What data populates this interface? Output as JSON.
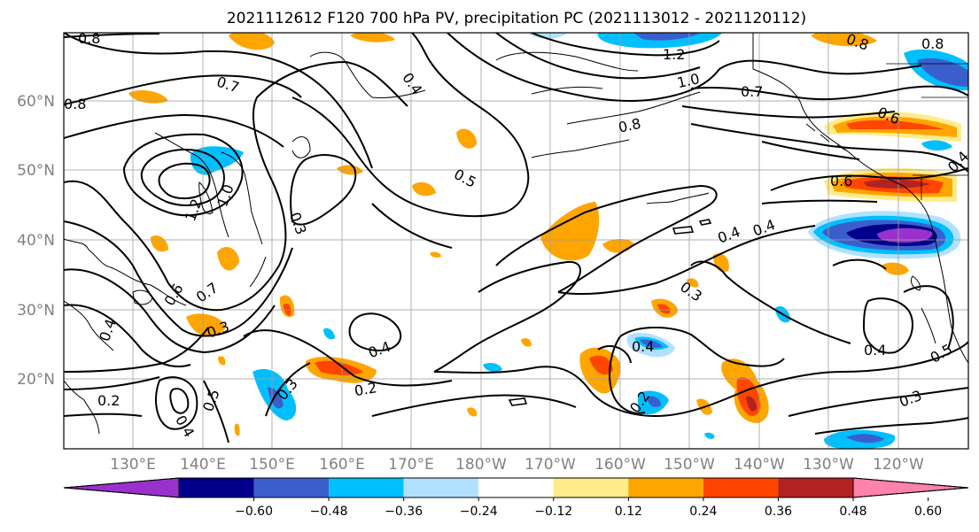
{
  "title": "2021112612 F120 700 hPa PV, precipitation PC (2021113012 - 2021120112)",
  "map": {
    "lat_labels": [
      "60°N",
      "50°N",
      "40°N",
      "30°N",
      "20°N"
    ],
    "lon_labels": [
      "130°E",
      "140°E",
      "150°E",
      "160°E",
      "170°E",
      "180°W",
      "170°W",
      "160°W",
      "150°W",
      "140°W",
      "130°W",
      "120°W"
    ],
    "contour_labels": [
      "0.8",
      "0.8",
      "0.7",
      "0.4",
      "1.2",
      "1.0",
      "0.7",
      "0.8",
      "0.8",
      "0.8",
      "0.6",
      "0.6",
      "0.4",
      "0.5",
      "0.3",
      "1.2",
      "1.0",
      "0.6",
      "0.7",
      "0.3",
      "0.4",
      "0.2",
      "0.4",
      "0.2",
      "0.3",
      "0.5",
      "0.4",
      "0.3",
      "0.4",
      "0.2",
      "0.3",
      "0.4",
      "0.5",
      "0.4",
      "0.4"
    ]
  },
  "colorbar": {
    "ticks": [
      "−0.60",
      "−0.48",
      "−0.36",
      "−0.24",
      "−0.12",
      "0.12",
      "0.24",
      "0.36",
      "0.48",
      "0.60"
    ],
    "colors": [
      "#9932cc",
      "#00008b",
      "#3a5fcd",
      "#00bfff",
      "#b0e2ff",
      "#ffffff",
      "#ffec8b",
      "#ffa500",
      "#ff4500",
      "#b22222",
      "#ff82ab"
    ]
  }
}
